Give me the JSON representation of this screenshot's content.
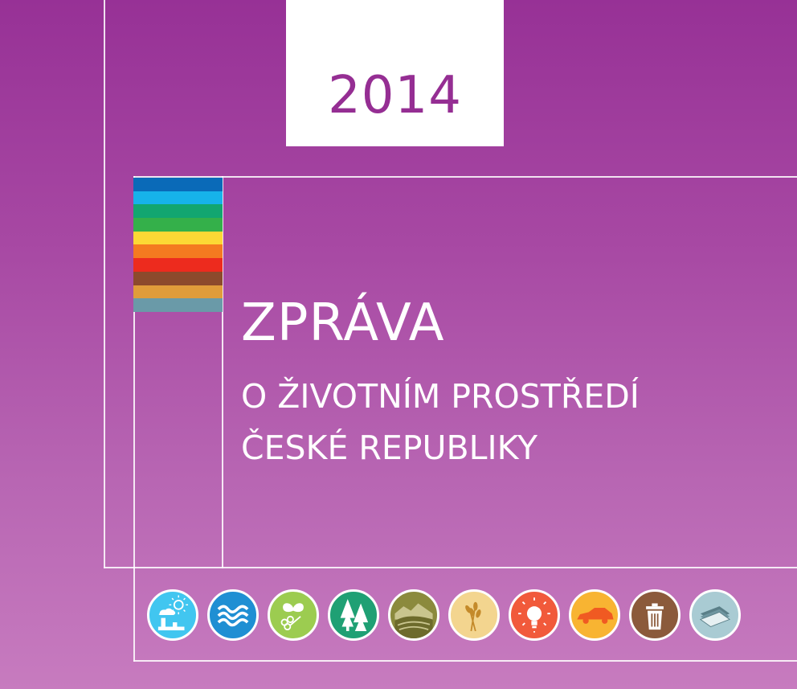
{
  "cover": {
    "year": "2014",
    "title_line1": "ZPRÁVA",
    "title_line2": "O ŽIVOTNÍM PROSTŘEDÍ",
    "title_line3": "ČESKÉ REPUBLIKY"
  },
  "colors": {
    "background_top": "#973196",
    "background_bottom": "#c77bbf",
    "year_text": "#952e93",
    "stripes": [
      "#0a6ab8",
      "#16b3ea",
      "#12a670",
      "#34b04a",
      "#fcd835",
      "#f47a20",
      "#ed2b1e",
      "#8c4a2c",
      "#e09c3a",
      "#6a9aa8"
    ]
  },
  "topic_icons": [
    {
      "name": "air-industry-icon",
      "color": "#41c6f0"
    },
    {
      "name": "water-waves-icon",
      "color": "#1f8fd3"
    },
    {
      "name": "nature-butterfly-icon",
      "color": "#9ccc50"
    },
    {
      "name": "forest-trees-icon",
      "color": "#1fa074"
    },
    {
      "name": "landscape-hills-icon",
      "color": "#8b8a3d"
    },
    {
      "name": "agriculture-wheat-icon",
      "color": "#f3d58f"
    },
    {
      "name": "energy-bulb-icon",
      "color": "#f15a3b"
    },
    {
      "name": "transport-car-icon",
      "color": "#f8b432"
    },
    {
      "name": "waste-bin-icon",
      "color": "#8b5a3b"
    },
    {
      "name": "economy-money-icon",
      "color": "#a9cbd3"
    }
  ]
}
